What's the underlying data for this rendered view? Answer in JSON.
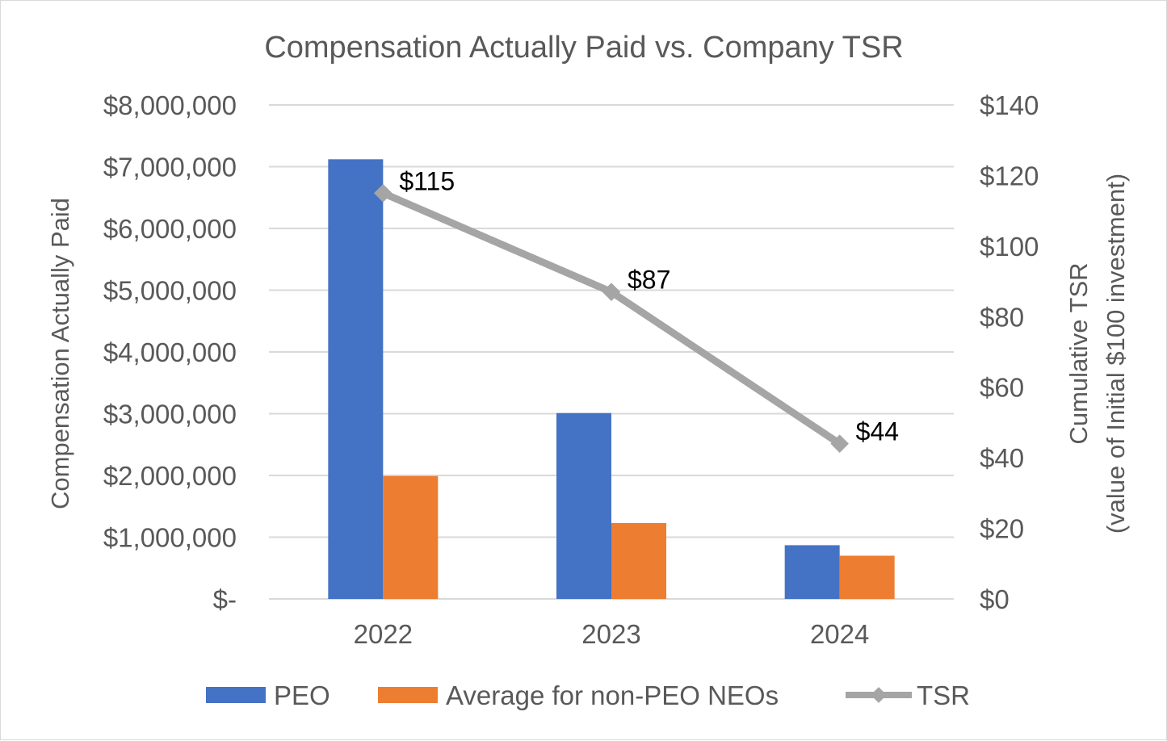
{
  "chart_data": {
    "type": "bar",
    "title": "Compensation Actually Paid vs. Company TSR",
    "categories": [
      "2022",
      "2023",
      "2024"
    ],
    "ylabel": "Compensation Actually Paid",
    "y2label_line1": "Cumulative  TSR",
    "y2label_line2": "(value of Initial  $100 investment)",
    "ylim": [
      0,
      8000000
    ],
    "y2lim": [
      0,
      140
    ],
    "yticks": [
      {
        "value": 0,
        "label": "$-"
      },
      {
        "value": 1000000,
        "label": "$1,000,000"
      },
      {
        "value": 2000000,
        "label": "$2,000,000"
      },
      {
        "value": 3000000,
        "label": "$3,000,000"
      },
      {
        "value": 4000000,
        "label": "$4,000,000"
      },
      {
        "value": 5000000,
        "label": "$5,000,000"
      },
      {
        "value": 6000000,
        "label": "$6,000,000"
      },
      {
        "value": 7000000,
        "label": "$7,000,000"
      },
      {
        "value": 8000000,
        "label": "$8,000,000"
      }
    ],
    "y2ticks": [
      {
        "value": 0,
        "label": "$0"
      },
      {
        "value": 20,
        "label": "$20"
      },
      {
        "value": 40,
        "label": "$40"
      },
      {
        "value": 60,
        "label": "$60"
      },
      {
        "value": 80,
        "label": "$80"
      },
      {
        "value": 100,
        "label": "$100"
      },
      {
        "value": 120,
        "label": "$120"
      },
      {
        "value": 140,
        "label": "$140"
      }
    ],
    "grid": true,
    "legend_position": "bottom",
    "series": [
      {
        "name": "PEO",
        "kind": "bar",
        "axis": "left",
        "color": "#4472c4",
        "values": [
          7120000,
          3010000,
          870000
        ]
      },
      {
        "name": "Average for non-PEO NEOs",
        "kind": "bar",
        "axis": "left",
        "color": "#ed7d31",
        "values": [
          1990000,
          1230000,
          700000
        ]
      },
      {
        "name": "TSR",
        "kind": "line",
        "axis": "right",
        "color": "#a5a5a5",
        "values": [
          115,
          87,
          44
        ],
        "labels": [
          "$115",
          "$87",
          "$44"
        ]
      }
    ]
  }
}
